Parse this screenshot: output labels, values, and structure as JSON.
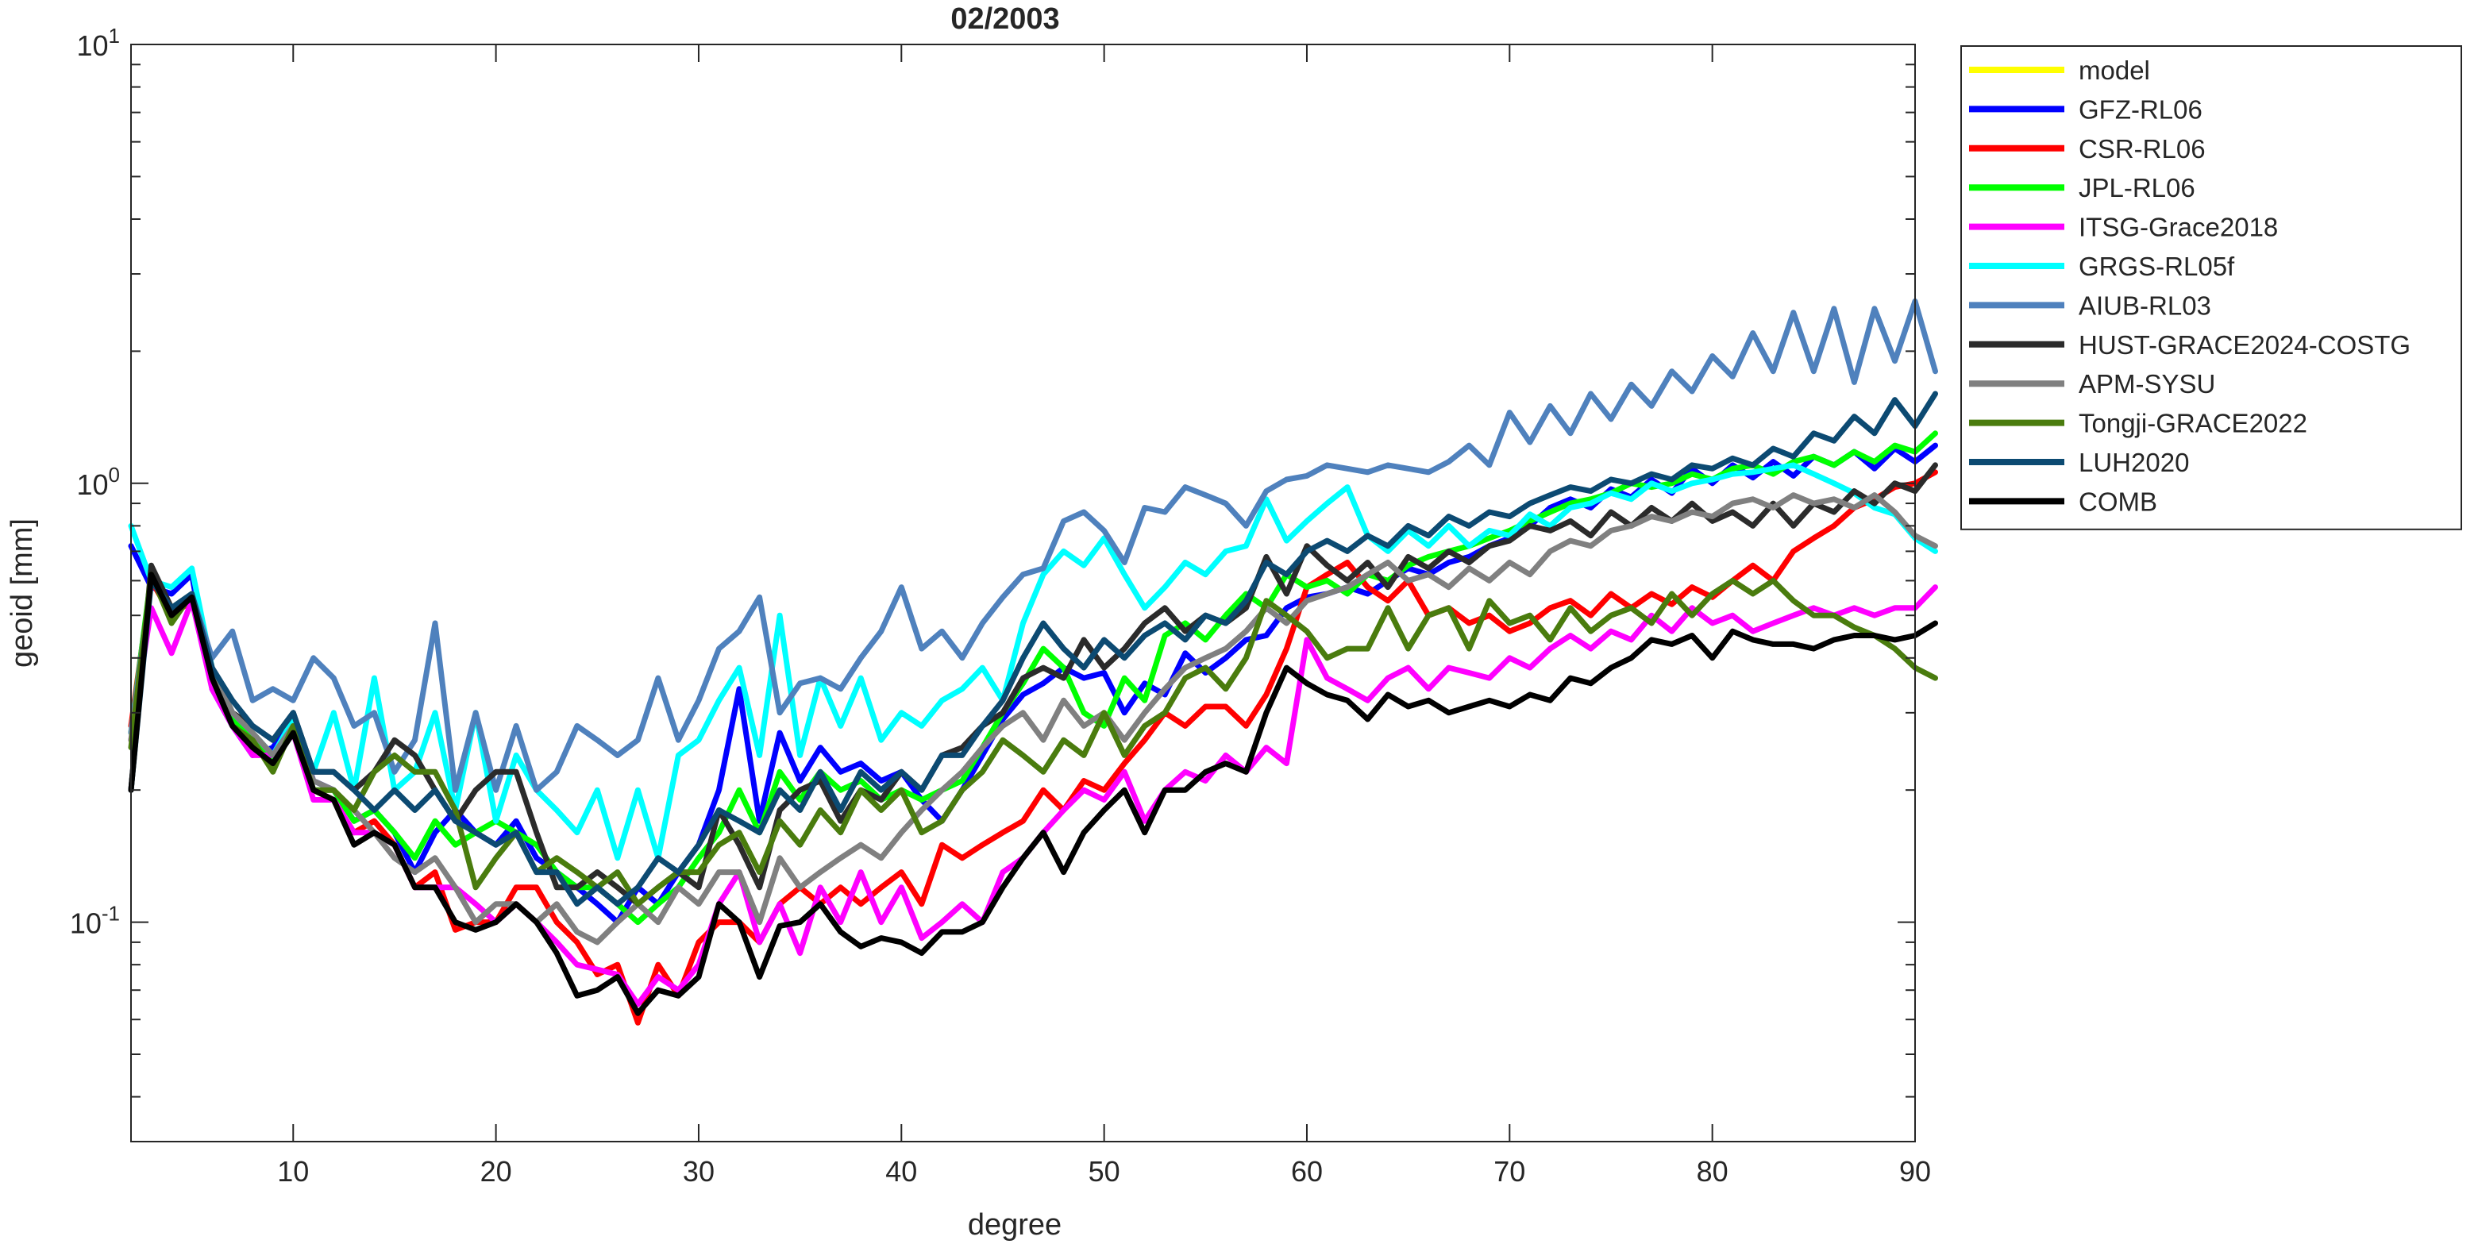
{
  "chart_data": {
    "type": "line",
    "title": "02/2003",
    "xlabel": "degree",
    "ylabel": "geoid [mm]",
    "xlim": [
      2,
      90
    ],
    "ylim": [
      0.03162,
      10
    ],
    "yscale": "log",
    "grid": false,
    "legend_position": "outside-right-top",
    "xticks": [
      10,
      20,
      30,
      40,
      50,
      60,
      70,
      80,
      90
    ],
    "xtick_labels": [
      "10",
      "20",
      "30",
      "40",
      "50",
      "60",
      "70",
      "80",
      "90"
    ],
    "yticks_major": [
      {
        "value": 0.1,
        "base": "10",
        "exp": "-1"
      },
      {
        "value": 1,
        "base": "10",
        "exp": "0"
      },
      {
        "value": 10,
        "base": "10",
        "exp": "1"
      }
    ],
    "x_start": 2,
    "series": [
      {
        "name": "model",
        "color": "#ffff00",
        "values": []
      },
      {
        "name": "GFZ-RL06",
        "color": "#0000ff",
        "values": [
          0.72,
          0.58,
          0.56,
          0.62,
          0.34,
          0.28,
          0.24,
          0.25,
          0.29,
          0.21,
          0.2,
          0.17,
          0.18,
          0.16,
          0.13,
          0.16,
          0.18,
          0.16,
          0.15,
          0.17,
          0.14,
          0.13,
          0.12,
          0.11,
          0.1,
          0.12,
          0.11,
          0.13,
          0.15,
          0.2,
          0.34,
          0.17,
          0.27,
          0.21,
          0.25,
          0.22,
          0.23,
          0.21,
          0.22,
          0.19,
          0.17,
          0.2,
          0.24,
          0.29,
          0.33,
          0.35,
          0.38,
          0.36,
          0.37,
          0.3,
          0.35,
          0.33,
          0.41,
          0.37,
          0.4,
          0.44,
          0.45,
          0.52,
          0.55,
          0.56,
          0.58,
          0.56,
          0.6,
          0.64,
          0.62,
          0.66,
          0.68,
          0.72,
          0.75,
          0.8,
          0.88,
          0.92,
          0.88,
          0.97,
          0.93,
          1.02,
          0.95,
          1.08,
          1.0,
          1.1,
          1.03,
          1.12,
          1.04,
          1.15,
          1.1,
          1.18,
          1.08,
          1.2,
          1.12,
          1.22
        ]
      },
      {
        "name": "CSR-RL06",
        "color": "#ff0000",
        "values": [
          0.28,
          0.6,
          0.5,
          0.54,
          0.36,
          0.3,
          0.25,
          0.24,
          0.28,
          0.2,
          0.19,
          0.16,
          0.17,
          0.15,
          0.12,
          0.13,
          0.096,
          0.1,
          0.1,
          0.12,
          0.12,
          0.1,
          0.09,
          0.076,
          0.08,
          0.059,
          0.08,
          0.068,
          0.09,
          0.1,
          0.1,
          0.09,
          0.11,
          0.12,
          0.11,
          0.12,
          0.11,
          0.12,
          0.13,
          0.11,
          0.15,
          0.14,
          0.15,
          0.16,
          0.17,
          0.2,
          0.18,
          0.21,
          0.2,
          0.23,
          0.26,
          0.3,
          0.28,
          0.31,
          0.31,
          0.28,
          0.33,
          0.42,
          0.58,
          0.62,
          0.66,
          0.58,
          0.54,
          0.6,
          0.5,
          0.52,
          0.48,
          0.5,
          0.46,
          0.48,
          0.52,
          0.54,
          0.5,
          0.56,
          0.52,
          0.56,
          0.53,
          0.58,
          0.55,
          0.6,
          0.65,
          0.6,
          0.7,
          0.75,
          0.8,
          0.88,
          0.92,
          0.98,
          1.0,
          1.06
        ]
      },
      {
        "name": "JPL-RL06",
        "color": "#00ff00",
        "values": [
          0.27,
          0.62,
          0.52,
          0.56,
          0.38,
          0.29,
          0.26,
          0.23,
          0.28,
          0.2,
          0.2,
          0.17,
          0.18,
          0.16,
          0.14,
          0.17,
          0.15,
          0.16,
          0.17,
          0.16,
          0.15,
          0.13,
          0.12,
          0.12,
          0.11,
          0.1,
          0.11,
          0.12,
          0.14,
          0.16,
          0.2,
          0.16,
          0.22,
          0.19,
          0.22,
          0.2,
          0.21,
          0.19,
          0.2,
          0.19,
          0.2,
          0.21,
          0.25,
          0.3,
          0.35,
          0.42,
          0.38,
          0.3,
          0.28,
          0.36,
          0.32,
          0.45,
          0.48,
          0.44,
          0.5,
          0.56,
          0.52,
          0.62,
          0.58,
          0.6,
          0.56,
          0.62,
          0.6,
          0.65,
          0.68,
          0.7,
          0.72,
          0.75,
          0.78,
          0.82,
          0.86,
          0.9,
          0.92,
          0.95,
          1.0,
          0.98,
          1.0,
          1.05,
          1.02,
          1.08,
          1.1,
          1.05,
          1.12,
          1.15,
          1.1,
          1.18,
          1.12,
          1.22,
          1.18,
          1.3
        ]
      },
      {
        "name": "ITSG-Grace2018",
        "color": "#ff00ff",
        "values": [
          0.26,
          0.52,
          0.41,
          0.54,
          0.34,
          0.28,
          0.24,
          0.24,
          0.27,
          0.19,
          0.19,
          0.16,
          0.16,
          0.15,
          0.12,
          0.12,
          0.12,
          0.11,
          0.1,
          0.11,
          0.1,
          0.09,
          0.08,
          0.078,
          0.076,
          0.065,
          0.075,
          0.07,
          0.08,
          0.11,
          0.13,
          0.09,
          0.11,
          0.085,
          0.12,
          0.1,
          0.13,
          0.1,
          0.12,
          0.092,
          0.1,
          0.11,
          0.1,
          0.13,
          0.14,
          0.16,
          0.18,
          0.2,
          0.19,
          0.22,
          0.17,
          0.2,
          0.22,
          0.21,
          0.24,
          0.22,
          0.25,
          0.23,
          0.44,
          0.36,
          0.34,
          0.32,
          0.36,
          0.38,
          0.34,
          0.38,
          0.37,
          0.36,
          0.4,
          0.38,
          0.42,
          0.45,
          0.42,
          0.46,
          0.44,
          0.5,
          0.46,
          0.52,
          0.48,
          0.5,
          0.46,
          0.48,
          0.5,
          0.52,
          0.5,
          0.52,
          0.5,
          0.52,
          0.52,
          0.58
        ]
      },
      {
        "name": "GRGS-RL05f",
        "color": "#00ffff",
        "values": [
          0.8,
          0.6,
          0.58,
          0.64,
          0.38,
          0.3,
          0.27,
          0.24,
          0.29,
          0.22,
          0.3,
          0.2,
          0.36,
          0.2,
          0.22,
          0.3,
          0.18,
          0.3,
          0.17,
          0.24,
          0.2,
          0.18,
          0.16,
          0.2,
          0.14,
          0.2,
          0.14,
          0.24,
          0.26,
          0.32,
          0.38,
          0.24,
          0.5,
          0.24,
          0.36,
          0.28,
          0.36,
          0.26,
          0.3,
          0.28,
          0.32,
          0.34,
          0.38,
          0.32,
          0.48,
          0.62,
          0.7,
          0.65,
          0.75,
          0.62,
          0.52,
          0.58,
          0.66,
          0.62,
          0.7,
          0.72,
          0.92,
          0.74,
          0.82,
          0.9,
          0.98,
          0.76,
          0.7,
          0.78,
          0.72,
          0.8,
          0.72,
          0.78,
          0.76,
          0.85,
          0.8,
          0.88,
          0.9,
          0.95,
          0.92,
          1.0,
          0.96,
          1.0,
          1.02,
          1.05,
          1.06,
          1.08,
          1.1,
          1.05,
          1.0,
          0.95,
          0.88,
          0.85,
          0.75,
          0.7
        ]
      },
      {
        "name": "AIUB-RL03",
        "color": "#4f81bd",
        "values": [
          0.27,
          0.6,
          0.52,
          0.56,
          0.4,
          0.46,
          0.32,
          0.34,
          0.32,
          0.4,
          0.36,
          0.28,
          0.3,
          0.22,
          0.26,
          0.48,
          0.2,
          0.3,
          0.2,
          0.28,
          0.2,
          0.22,
          0.28,
          0.26,
          0.24,
          0.26,
          0.36,
          0.26,
          0.32,
          0.42,
          0.46,
          0.55,
          0.3,
          0.35,
          0.36,
          0.34,
          0.4,
          0.46,
          0.58,
          0.42,
          0.46,
          0.4,
          0.48,
          0.55,
          0.62,
          0.64,
          0.82,
          0.86,
          0.78,
          0.66,
          0.88,
          0.86,
          0.98,
          0.94,
          0.9,
          0.8,
          0.96,
          1.02,
          1.04,
          1.1,
          1.08,
          1.06,
          1.1,
          1.08,
          1.06,
          1.12,
          1.22,
          1.1,
          1.45,
          1.24,
          1.5,
          1.3,
          1.6,
          1.4,
          1.68,
          1.5,
          1.8,
          1.62,
          1.95,
          1.75,
          2.2,
          1.8,
          2.45,
          1.8,
          2.5,
          1.7,
          2.5,
          1.9,
          2.6,
          1.8
        ]
      },
      {
        "name": "HUST-GRACE2024-COSTG",
        "color": "#2b2b2b",
        "values": [
          0.2,
          0.65,
          0.52,
          0.55,
          0.38,
          0.3,
          0.28,
          0.26,
          0.3,
          0.22,
          0.22,
          0.2,
          0.22,
          0.26,
          0.24,
          0.2,
          0.17,
          0.2,
          0.22,
          0.22,
          0.16,
          0.12,
          0.12,
          0.13,
          0.12,
          0.11,
          0.12,
          0.13,
          0.12,
          0.18,
          0.15,
          0.12,
          0.18,
          0.2,
          0.21,
          0.17,
          0.2,
          0.19,
          0.22,
          0.2,
          0.24,
          0.25,
          0.28,
          0.3,
          0.36,
          0.38,
          0.36,
          0.44,
          0.38,
          0.42,
          0.48,
          0.52,
          0.46,
          0.5,
          0.48,
          0.52,
          0.68,
          0.56,
          0.72,
          0.65,
          0.6,
          0.66,
          0.58,
          0.68,
          0.64,
          0.7,
          0.66,
          0.72,
          0.74,
          0.8,
          0.78,
          0.82,
          0.76,
          0.86,
          0.8,
          0.88,
          0.82,
          0.9,
          0.82,
          0.86,
          0.8,
          0.9,
          0.8,
          0.9,
          0.86,
          0.96,
          0.9,
          1.0,
          0.96,
          1.1
        ]
      },
      {
        "name": "APM-SYSU",
        "color": "#808080",
        "values": [
          0.26,
          0.6,
          0.52,
          0.56,
          0.38,
          0.3,
          0.27,
          0.24,
          0.28,
          0.21,
          0.2,
          0.18,
          0.16,
          0.14,
          0.13,
          0.14,
          0.12,
          0.1,
          0.11,
          0.11,
          0.1,
          0.11,
          0.095,
          0.09,
          0.1,
          0.11,
          0.1,
          0.12,
          0.11,
          0.13,
          0.13,
          0.1,
          0.14,
          0.12,
          0.13,
          0.14,
          0.15,
          0.14,
          0.16,
          0.18,
          0.2,
          0.22,
          0.25,
          0.28,
          0.3,
          0.26,
          0.32,
          0.28,
          0.3,
          0.26,
          0.3,
          0.34,
          0.38,
          0.4,
          0.42,
          0.46,
          0.52,
          0.48,
          0.54,
          0.56,
          0.58,
          0.62,
          0.66,
          0.6,
          0.62,
          0.58,
          0.64,
          0.6,
          0.66,
          0.62,
          0.7,
          0.74,
          0.72,
          0.78,
          0.8,
          0.84,
          0.82,
          0.86,
          0.84,
          0.9,
          0.92,
          0.88,
          0.94,
          0.9,
          0.92,
          0.88,
          0.94,
          0.86,
          0.76,
          0.72
        ]
      },
      {
        "name": "Tongji-GRACE2022",
        "color": "#4a7c0e",
        "values": [
          0.25,
          0.62,
          0.48,
          0.56,
          0.36,
          0.28,
          0.26,
          0.22,
          0.28,
          0.2,
          0.2,
          0.18,
          0.22,
          0.24,
          0.22,
          0.22,
          0.18,
          0.12,
          0.14,
          0.16,
          0.13,
          0.14,
          0.13,
          0.12,
          0.13,
          0.11,
          0.12,
          0.13,
          0.13,
          0.15,
          0.16,
          0.13,
          0.17,
          0.15,
          0.18,
          0.16,
          0.2,
          0.18,
          0.2,
          0.16,
          0.17,
          0.2,
          0.22,
          0.26,
          0.24,
          0.22,
          0.26,
          0.24,
          0.3,
          0.24,
          0.28,
          0.3,
          0.36,
          0.38,
          0.34,
          0.4,
          0.54,
          0.5,
          0.46,
          0.4,
          0.42,
          0.42,
          0.52,
          0.42,
          0.5,
          0.52,
          0.42,
          0.54,
          0.48,
          0.5,
          0.44,
          0.52,
          0.46,
          0.5,
          0.52,
          0.48,
          0.56,
          0.5,
          0.56,
          0.6,
          0.56,
          0.6,
          0.54,
          0.5,
          0.5,
          0.47,
          0.45,
          0.42,
          0.38,
          0.36
        ]
      },
      {
        "name": "LUH2020",
        "color": "#0c4a72",
        "values": [
          0.2,
          0.6,
          0.52,
          0.56,
          0.38,
          0.32,
          0.28,
          0.26,
          0.3,
          0.22,
          0.22,
          0.2,
          0.18,
          0.2,
          0.18,
          0.2,
          0.17,
          0.16,
          0.15,
          0.16,
          0.13,
          0.13,
          0.11,
          0.12,
          0.11,
          0.12,
          0.14,
          0.13,
          0.15,
          0.18,
          0.17,
          0.16,
          0.2,
          0.18,
          0.22,
          0.18,
          0.22,
          0.2,
          0.22,
          0.2,
          0.24,
          0.24,
          0.28,
          0.32,
          0.4,
          0.48,
          0.42,
          0.38,
          0.44,
          0.4,
          0.45,
          0.48,
          0.44,
          0.5,
          0.48,
          0.54,
          0.66,
          0.62,
          0.7,
          0.74,
          0.7,
          0.76,
          0.72,
          0.8,
          0.76,
          0.84,
          0.8,
          0.86,
          0.84,
          0.9,
          0.94,
          0.98,
          0.96,
          1.02,
          1.0,
          1.05,
          1.02,
          1.1,
          1.08,
          1.14,
          1.1,
          1.2,
          1.15,
          1.3,
          1.25,
          1.42,
          1.3,
          1.55,
          1.35,
          1.6
        ]
      },
      {
        "name": "COMB",
        "color": "#000000",
        "values": [
          0.2,
          0.62,
          0.5,
          0.55,
          0.36,
          0.28,
          0.25,
          0.23,
          0.27,
          0.2,
          0.19,
          0.15,
          0.16,
          0.15,
          0.12,
          0.12,
          0.1,
          0.096,
          0.1,
          0.11,
          0.1,
          0.085,
          0.068,
          0.07,
          0.075,
          0.062,
          0.07,
          0.068,
          0.075,
          0.11,
          0.1,
          0.075,
          0.098,
          0.1,
          0.11,
          0.095,
          0.088,
          0.092,
          0.09,
          0.085,
          0.095,
          0.095,
          0.1,
          0.12,
          0.14,
          0.16,
          0.13,
          0.16,
          0.18,
          0.2,
          0.16,
          0.2,
          0.2,
          0.22,
          0.23,
          0.22,
          0.3,
          0.38,
          0.35,
          0.33,
          0.32,
          0.29,
          0.33,
          0.31,
          0.32,
          0.3,
          0.31,
          0.32,
          0.31,
          0.33,
          0.32,
          0.36,
          0.35,
          0.38,
          0.4,
          0.44,
          0.43,
          0.45,
          0.4,
          0.46,
          0.44,
          0.43,
          0.43,
          0.42,
          0.44,
          0.45,
          0.45,
          0.44,
          0.45,
          0.48
        ]
      }
    ]
  }
}
